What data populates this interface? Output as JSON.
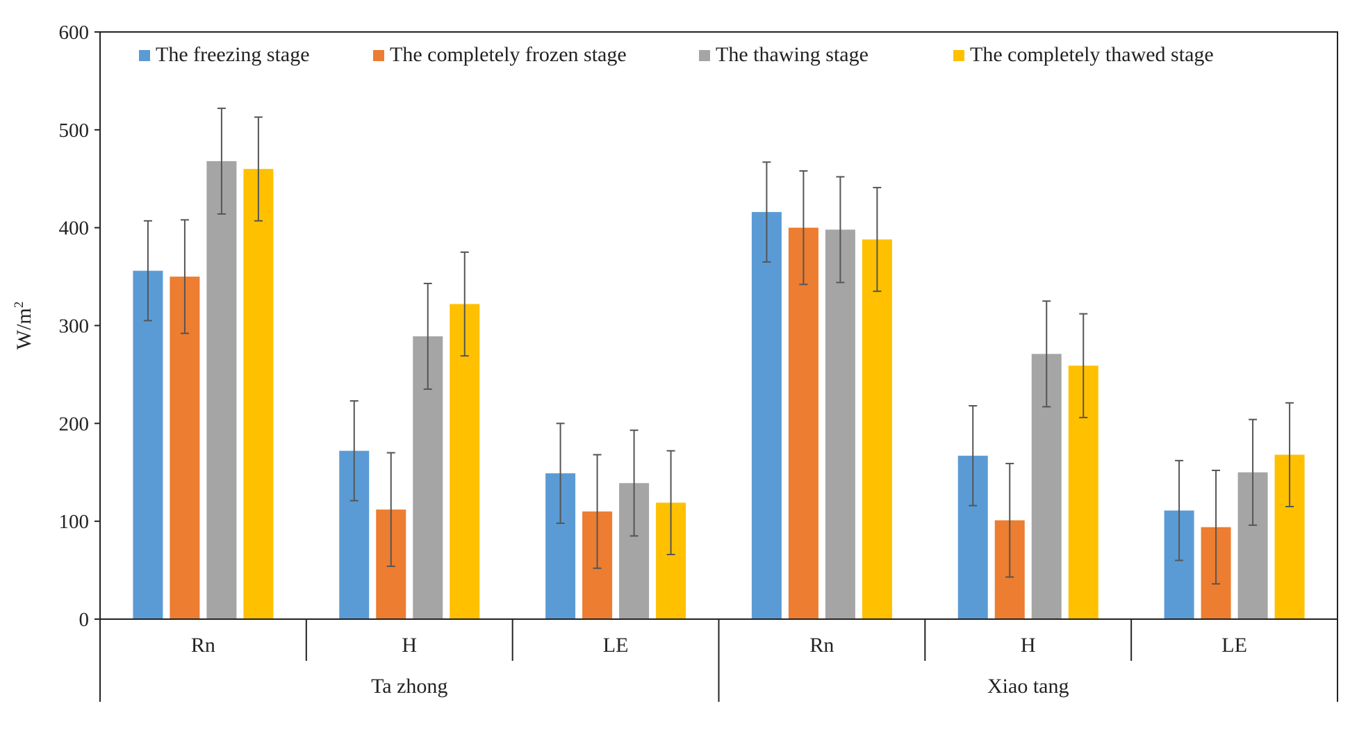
{
  "chart_data": {
    "type": "bar",
    "title": "",
    "ylabel": "W/m",
    "ylabel_superscript": "2",
    "ylim": [
      0,
      600
    ],
    "yticks": [
      0,
      100,
      200,
      300,
      400,
      500,
      600
    ],
    "groups": [
      {
        "name": "Ta zhong",
        "categories": [
          "Rn",
          "H",
          "LE"
        ]
      },
      {
        "name": "Xiao tang",
        "categories": [
          "Rn",
          "H",
          "LE"
        ]
      }
    ],
    "series": [
      {
        "name": "The freezing stage",
        "color": "#5b9bd5",
        "values": [
          356,
          172,
          149,
          416,
          167,
          111
        ],
        "errors": [
          51,
          51,
          51,
          51,
          51,
          51
        ]
      },
      {
        "name": "The completely frozen stage",
        "color": "#ed7d31",
        "values": [
          350,
          112,
          110,
          400,
          101,
          94
        ],
        "errors": [
          58,
          58,
          58,
          58,
          58,
          58
        ]
      },
      {
        "name": "The thawing stage",
        "color": "#a5a5a5",
        "values": [
          468,
          289,
          139,
          398,
          271,
          150
        ],
        "errors": [
          54,
          54,
          54,
          54,
          54,
          54
        ]
      },
      {
        "name": "The completely thawed stage",
        "color": "#ffc000",
        "values": [
          460,
          322,
          119,
          388,
          259,
          168
        ],
        "errors": [
          53,
          53,
          53,
          53,
          53,
          53
        ]
      }
    ],
    "legend_position": "top",
    "grid": false
  }
}
